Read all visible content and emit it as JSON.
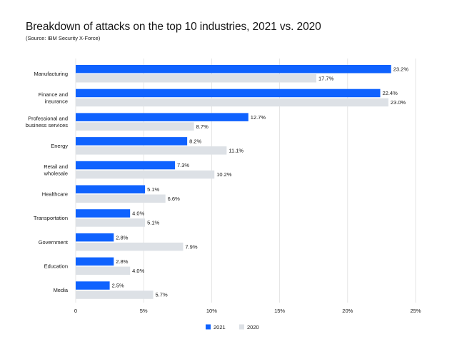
{
  "header": {
    "title": "Breakdown of attacks on the top 10 industries, 2021 vs. 2020",
    "subtitle": "(Source: IBM Security X-Force)"
  },
  "chart_data": {
    "type": "bar",
    "orientation": "horizontal",
    "title": "Breakdown of attacks on the top 10 industries, 2021 vs. 2020",
    "subtitle": "(Source: IBM Security X-Force)",
    "categories": [
      [
        "Manufacturing"
      ],
      [
        "Finance and",
        "insurance"
      ],
      [
        "Professional and",
        "business services"
      ],
      [
        "Energy"
      ],
      [
        "Retail and",
        "wholesale"
      ],
      [
        "Healthcare"
      ],
      [
        "Transportation"
      ],
      [
        "Government"
      ],
      [
        "Education"
      ],
      [
        "Media"
      ]
    ],
    "series": [
      {
        "name": "2021",
        "color": "#0f62fe",
        "values": [
          23.2,
          22.4,
          12.7,
          8.2,
          7.3,
          5.1,
          4.0,
          2.8,
          2.8,
          2.5
        ]
      },
      {
        "name": "2020",
        "color": "#dde1e6",
        "values": [
          17.7,
          23.0,
          8.7,
          11.1,
          10.2,
          6.6,
          5.1,
          7.9,
          4.0,
          5.7
        ]
      }
    ],
    "value_suffix": "%",
    "xlim": [
      0,
      25
    ],
    "xticks": [
      0,
      5,
      10,
      15,
      20,
      25
    ],
    "xtick_labels": [
      "0",
      "5%",
      "10%",
      "15%",
      "20%",
      "25%"
    ],
    "grid": true,
    "xlabel": "",
    "ylabel": "",
    "legend_position": "bottom-center"
  }
}
